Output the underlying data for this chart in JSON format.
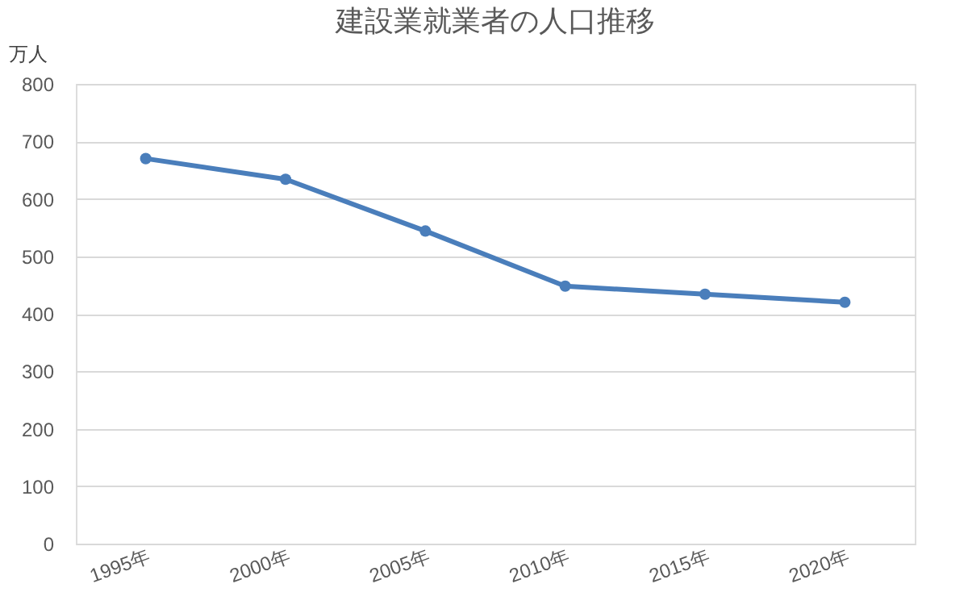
{
  "chart_data": {
    "type": "line",
    "title": "建設業就業者の人口推移",
    "ylabel": "万人",
    "categories": [
      "1995年",
      "2000年",
      "2005年",
      "2010年",
      "2015年",
      "2020年"
    ],
    "series": [
      {
        "color": "#4a7ebb",
        "values": [
          670,
          634,
          544,
          448,
          434,
          420
        ]
      }
    ],
    "ylim": [
      0,
      800
    ],
    "yticks": [
      0,
      100,
      200,
      300,
      400,
      500,
      600,
      700,
      800
    ],
    "grid": "y",
    "marker": "circle",
    "line_style": "solid"
  }
}
